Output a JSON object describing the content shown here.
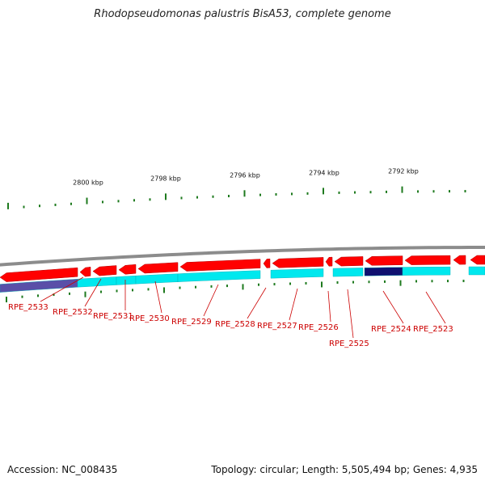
{
  "title": "Rhodopseudomonas palustris BisA53, complete genome",
  "footer": {
    "accession": "Accession: NC_008435",
    "summary": "Topology: circular; Length: 5,505,494 bp; Genes: 4,935"
  },
  "ruler": {
    "tick_labels": [
      "2800 kbp",
      "2798 kbp",
      "2796 kbp",
      "2794 kbp",
      "2792 kbp"
    ]
  },
  "colors": {
    "backbone": "#8c8c8c",
    "forward_gene": "#ff0000",
    "reverse_band": "#00e8ee",
    "highlight": "#101070",
    "tick": "#1e7a1e",
    "label": "#cc0000"
  },
  "genes": [
    {
      "label": "RPE_2533"
    },
    {
      "label": "RPE_2532"
    },
    {
      "label": "RPE_2531"
    },
    {
      "label": "RPE_2530"
    },
    {
      "label": "RPE_2529"
    },
    {
      "label": "RPE_2528"
    },
    {
      "label": "RPE_2527"
    },
    {
      "label": "RPE_2526"
    },
    {
      "label": "RPE_2525"
    },
    {
      "label": "RPE_2524"
    },
    {
      "label": "RPE_2523"
    }
  ]
}
